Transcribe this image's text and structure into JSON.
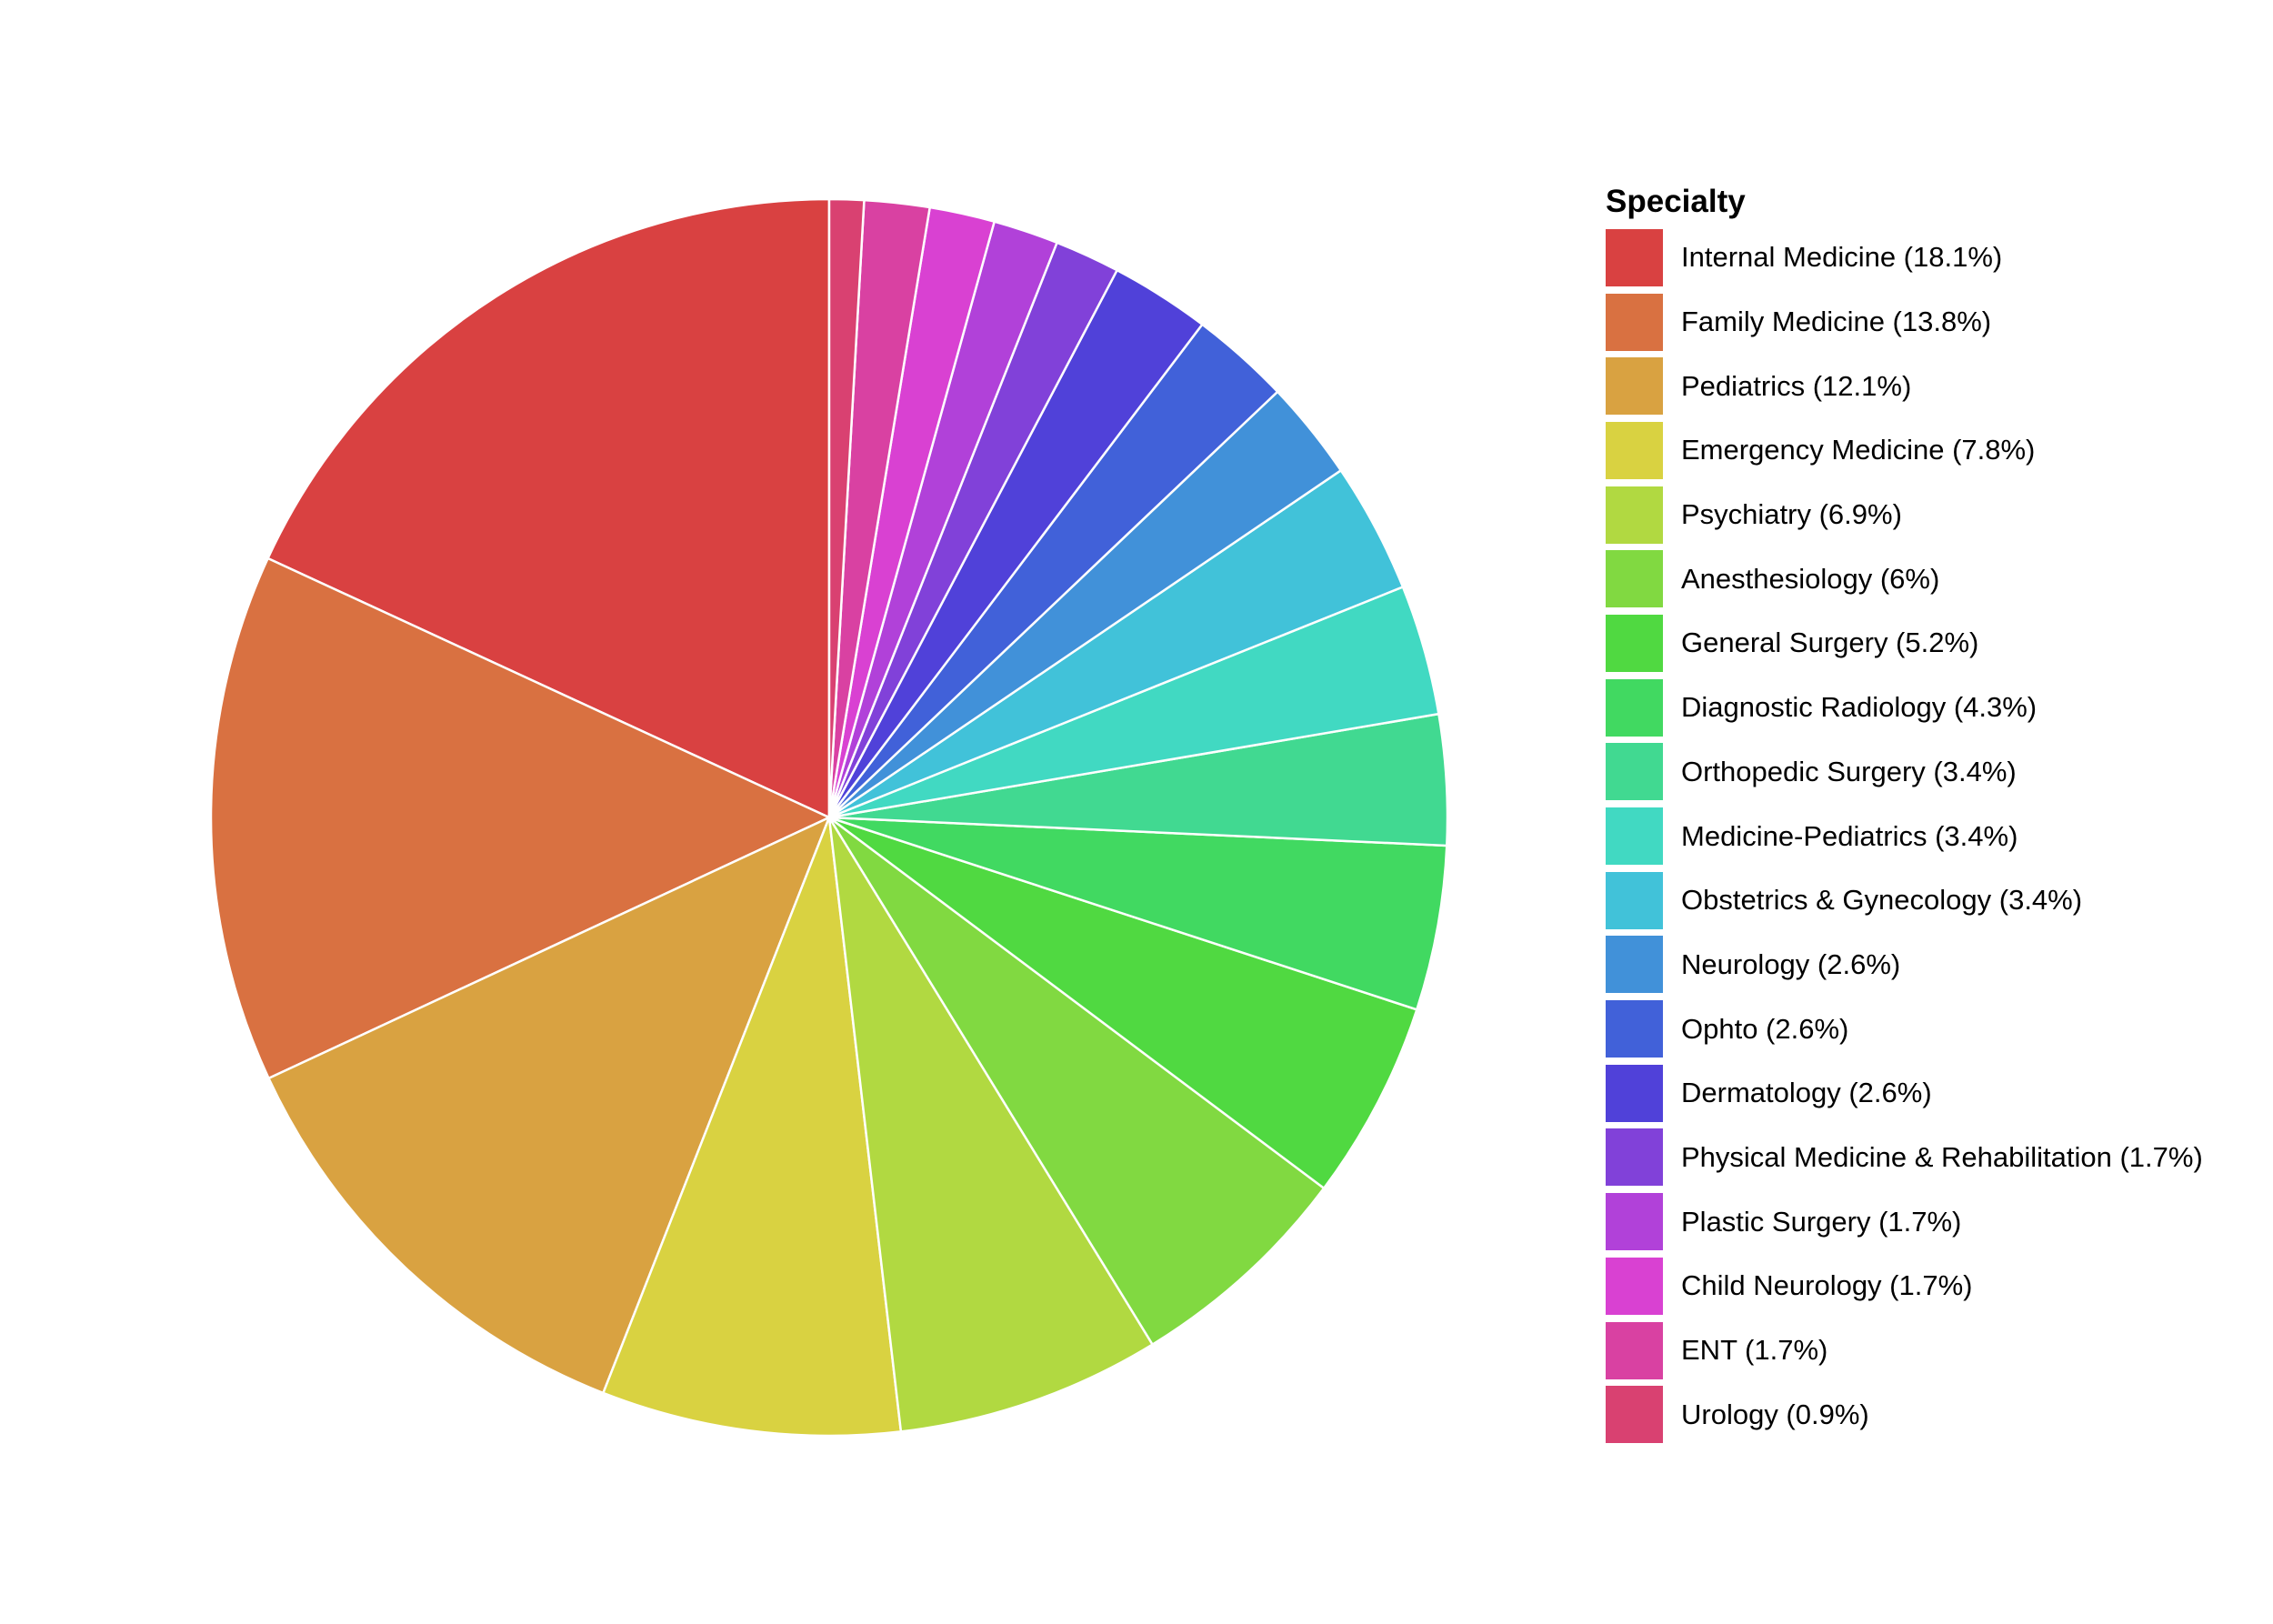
{
  "chart_data": {
    "type": "pie",
    "legend_title": "Specialty",
    "legend_position": "right",
    "start": "top",
    "direction": "counterclockwise",
    "slice_border_color": "#ffffff",
    "slices": [
      {
        "label": "Internal Medicine (18.1%)",
        "name": "Internal Medicine",
        "value": 18.1,
        "color": "#D94141"
      },
      {
        "label": "Family Medicine (13.8%)",
        "name": "Family Medicine",
        "value": 13.8,
        "color": "#D97141"
      },
      {
        "label": "Pediatrics (12.1%)",
        "name": "Pediatrics",
        "value": 12.1,
        "color": "#D9A241"
      },
      {
        "label": "Emergency Medicine (7.8%)",
        "name": "Emergency Medicine",
        "value": 7.8,
        "color": "#D9D241"
      },
      {
        "label": "Psychiatry (6.9%)",
        "name": "Psychiatry",
        "value": 6.9,
        "color": "#B1D941"
      },
      {
        "label": "Anesthesiology (6%)",
        "name": "Anesthesiology",
        "value": 6.0,
        "color": "#81D941"
      },
      {
        "label": "General Surgery (5.2%)",
        "name": "General Surgery",
        "value": 5.2,
        "color": "#50D941"
      },
      {
        "label": "Diagnostic Radiology (4.3%)",
        "name": "Diagnostic Radiology",
        "value": 4.3,
        "color": "#41D961"
      },
      {
        "label": "Orthopedic Surgery (3.4%)",
        "name": "Orthopedic Surgery",
        "value": 3.4,
        "color": "#41D991"
      },
      {
        "label": "Medicine-Pediatrics (3.4%)",
        "name": "Medicine-Pediatrics",
        "value": 3.4,
        "color": "#41D9C2"
      },
      {
        "label": "Obstetrics & Gynecology (3.4%)",
        "name": "Obstetrics & Gynecology",
        "value": 3.4,
        "color": "#41C2D9"
      },
      {
        "label": "Neurology (2.6%)",
        "name": "Neurology",
        "value": 2.6,
        "color": "#4191D9"
      },
      {
        "label": "Ophto (2.6%)",
        "name": "Ophto",
        "value": 2.6,
        "color": "#4161D9"
      },
      {
        "label": "Dermatology (2.6%)",
        "name": "Dermatology",
        "value": 2.6,
        "color": "#5041D9"
      },
      {
        "label": "Physical Medicine & Rehabilitation (1.7%)",
        "name": "Physical Medicine & Rehabilitation",
        "value": 1.7,
        "color": "#8141D9"
      },
      {
        "label": "Plastic Surgery (1.7%)",
        "name": "Plastic Surgery",
        "value": 1.7,
        "color": "#B141D9"
      },
      {
        "label": "Child Neurology (1.7%)",
        "name": "Child Neurology",
        "value": 1.7,
        "color": "#D941D2"
      },
      {
        "label": "ENT (1.7%)",
        "name": "ENT",
        "value": 1.7,
        "color": "#D941A2"
      },
      {
        "label": "Urology (0.9%)",
        "name": "Urology",
        "value": 0.9,
        "color": "#D94171"
      }
    ]
  }
}
